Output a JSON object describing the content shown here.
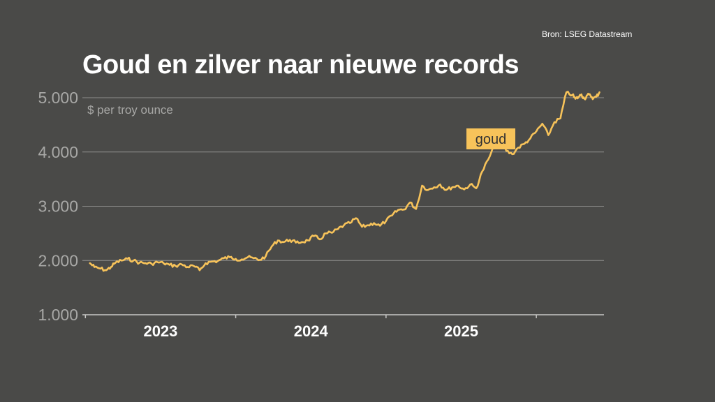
{
  "source": "Bron: LSEG Datastream",
  "colors": {
    "background": "#4a4a48",
    "gold": "#f7c35a",
    "grid": "#8f8f8d",
    "tick": "#a8a8a6",
    "text": "#ffffff"
  },
  "chart_data": {
    "type": "line",
    "title": "Goud en zilver naar nieuwe records",
    "ylabel": "$ per troy ounce",
    "xlabel": "",
    "ylim": [
      1000,
      5000
    ],
    "yticks": [
      1000,
      2000,
      3000,
      4000,
      5000
    ],
    "ytick_labels": [
      "1.000",
      "2.000",
      "3.000",
      "4.000",
      "5.000"
    ],
    "xlim": [
      2022.48,
      2025.95
    ],
    "xtick_positions": [
      2022.5,
      2023.5,
      2024.5,
      2025.5
    ],
    "year_labels": [
      {
        "label": "2023",
        "x": 2023.0
      },
      {
        "label": "2024",
        "x": 2024.0
      },
      {
        "label": "2025",
        "x": 2025.0
      }
    ],
    "grid": true,
    "series": [
      {
        "name": "goud",
        "label": "goud",
        "x": [
          2022.53,
          2022.56,
          2022.6,
          2022.64,
          2022.67,
          2022.7,
          2022.74,
          2022.78,
          2022.82,
          2022.86,
          2022.9,
          2022.94,
          2022.98,
          2023.02,
          2023.06,
          2023.1,
          2023.14,
          2023.18,
          2023.22,
          2023.26,
          2023.3,
          2023.34,
          2023.38,
          2023.42,
          2023.46,
          2023.5,
          2023.54,
          2023.58,
          2023.62,
          2023.66,
          2023.7,
          2023.74,
          2023.78,
          2023.82,
          2023.86,
          2023.9,
          2023.94,
          2023.98,
          2024.02,
          2024.06,
          2024.1,
          2024.14,
          2024.18,
          2024.22,
          2024.26,
          2024.3,
          2024.34,
          2024.38,
          2024.42,
          2024.46,
          2024.5,
          2024.54,
          2024.58,
          2024.62,
          2024.66,
          2024.7,
          2024.74,
          2024.78,
          2024.82,
          2024.86,
          2024.9,
          2024.94,
          2024.98,
          2025.02,
          2025.06,
          2025.1,
          2025.14,
          2025.18,
          2025.22,
          2025.26,
          2025.3,
          2025.34,
          2025.38,
          2025.42,
          2025.46,
          2025.5,
          2025.54,
          2025.58,
          2025.62,
          2025.66,
          2025.7,
          2025.74,
          2025.76,
          2025.78,
          2025.8,
          2025.82,
          2025.84,
          2025.86,
          2025.88,
          2025.9,
          2025.92
        ],
        "values": [
          1950,
          1880,
          1850,
          1820,
          1880,
          1960,
          2000,
          2030,
          2000,
          1960,
          1950,
          1940,
          1970,
          1950,
          1920,
          1900,
          1930,
          1880,
          1900,
          1820,
          1950,
          1980,
          1990,
          2040,
          2060,
          2030,
          2020,
          2060,
          2040,
          2010,
          2080,
          2260,
          2370,
          2340,
          2380,
          2330,
          2340,
          2370,
          2450,
          2390,
          2500,
          2510,
          2580,
          2650,
          2690,
          2780,
          2620,
          2650,
          2690,
          2640,
          2730,
          2830,
          2930,
          2940,
          3070,
          2950,
          3380,
          3300,
          3350,
          3400,
          3300,
          3350,
          3380,
          3310,
          3400,
          3330,
          3640,
          3860,
          4100,
          4350,
          4020,
          3960,
          4080,
          4150,
          4250,
          4380,
          4520,
          4310,
          4550,
          4620,
          5100,
          5050,
          4980,
          5010,
          5060,
          4980,
          5050,
          5040,
          4990,
          5020,
          5100
        ]
      }
    ]
  }
}
